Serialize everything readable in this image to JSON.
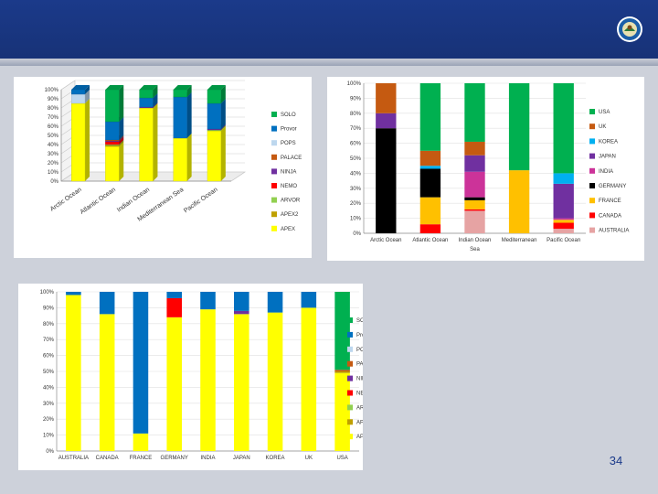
{
  "slide": {
    "page_number": "34"
  },
  "colors": {
    "SOLO": "#00b050",
    "Provor": "#0070c0",
    "POPS": "#bdd7ee",
    "PALACE": "#c55a11",
    "NINJA": "#7030a0",
    "NEMO": "#ff0000",
    "ARVOR": "#92d050",
    "APEX2": "#bfa000",
    "APEX": "#ffff00",
    "USA": "#00b050",
    "UK": "#c55a11",
    "KOREA": "#00b0f0",
    "JAPAN": "#7030a0",
    "INDIA": "#cc3399",
    "GERMANY": "#000000",
    "FRANCE": "#ffc000",
    "CANADA": "#ff0000",
    "AUSTRALIA": "#e6a3a3"
  },
  "chart_data": [
    {
      "id": "float-types-by-ocean",
      "type": "bar",
      "stacked": true,
      "style": "3d",
      "title": "",
      "xlabel": "",
      "ylabel": "",
      "ylim": [
        0,
        100
      ],
      "y_ticks": [
        "0%",
        "10%",
        "20%",
        "30%",
        "40%",
        "50%",
        "60%",
        "70%",
        "80%",
        "90%",
        "100%"
      ],
      "categories": [
        "Arctic Ocean",
        "Atlantic Ocean",
        "Indian Ocean",
        "Mediterranean Sea",
        "Pacific Ocean"
      ],
      "legend_position": "right",
      "legend": [
        "SOLO",
        "Provor",
        "POPS",
        "PALACE",
        "NINJA",
        "NEMO",
        "ARVOR",
        "APEX2",
        "APEX"
      ],
      "series": [
        {
          "name": "APEX",
          "values": [
            85,
            38,
            80,
            47,
            55
          ]
        },
        {
          "name": "APEX2",
          "values": [
            0,
            1,
            0,
            0,
            0
          ]
        },
        {
          "name": "ARVOR",
          "values": [
            0,
            1,
            0,
            0,
            1
          ]
        },
        {
          "name": "NEMO",
          "values": [
            0,
            3,
            0,
            0,
            0
          ]
        },
        {
          "name": "NINJA",
          "values": [
            0,
            1,
            1,
            0,
            1
          ]
        },
        {
          "name": "PALACE",
          "values": [
            0,
            1,
            0,
            0,
            0
          ]
        },
        {
          "name": "POPS",
          "values": [
            10,
            0,
            0,
            0,
            0
          ]
        },
        {
          "name": "Provor",
          "values": [
            5,
            20,
            10,
            45,
            28
          ]
        },
        {
          "name": "SOLO",
          "values": [
            0,
            35,
            9,
            8,
            15
          ]
        }
      ]
    },
    {
      "id": "countries-by-sea",
      "type": "bar",
      "stacked": true,
      "title": "",
      "xlabel": "Sea",
      "ylabel": "",
      "ylim": [
        0,
        100
      ],
      "y_ticks": [
        "0%",
        "10%",
        "20%",
        "30%",
        "40%",
        "50%",
        "60%",
        "70%",
        "80%",
        "90%",
        "100%"
      ],
      "categories": [
        "Arctic Ocean",
        "Atlantic Ocean",
        "Indian Ocean",
        "Mediterranean",
        "Pacific Ocean"
      ],
      "legend_position": "right",
      "legend": [
        "USA",
        "UK",
        "KOREA",
        "JAPAN",
        "INDIA",
        "GERMANY",
        "FRANCE",
        "CANADA",
        "AUSTRALIA"
      ],
      "series": [
        {
          "name": "AUSTRALIA",
          "values": [
            0,
            0,
            15,
            0,
            3
          ]
        },
        {
          "name": "CANADA",
          "values": [
            0,
            6,
            1,
            0,
            4
          ]
        },
        {
          "name": "FRANCE",
          "values": [
            0,
            18,
            6,
            42,
            2
          ]
        },
        {
          "name": "GERMANY",
          "values": [
            70,
            19,
            2,
            0,
            0
          ]
        },
        {
          "name": "INDIA",
          "values": [
            0,
            0,
            17,
            0,
            1
          ]
        },
        {
          "name": "JAPAN",
          "values": [
            10,
            0,
            11,
            0,
            23
          ]
        },
        {
          "name": "KOREA",
          "values": [
            0,
            2,
            0,
            0,
            7
          ]
        },
        {
          "name": "UK",
          "values": [
            20,
            10,
            9,
            0,
            0
          ]
        },
        {
          "name": "USA",
          "values": [
            0,
            45,
            39,
            58,
            60
          ]
        }
      ]
    },
    {
      "id": "float-types-by-country",
      "type": "bar",
      "stacked": true,
      "title": "",
      "xlabel": "",
      "ylabel": "",
      "ylim": [
        0,
        100
      ],
      "y_ticks": [
        "0%",
        "10%",
        "20%",
        "30%",
        "40%",
        "50%",
        "60%",
        "70%",
        "80%",
        "90%",
        "100%"
      ],
      "categories": [
        "AUSTRALIA",
        "CANADA",
        "FRANCE",
        "GERMANY",
        "INDIA",
        "JAPAN",
        "KOREA",
        "UK",
        "USA"
      ],
      "legend_position": "right",
      "legend": [
        "SOLO",
        "Provor",
        "POPS",
        "PALACE",
        "NINJA",
        "NEMO",
        "ARVOR",
        "APEX2",
        "APEX"
      ],
      "series": [
        {
          "name": "APEX",
          "values": [
            98,
            86,
            11,
            84,
            89,
            86,
            87,
            90,
            49
          ]
        },
        {
          "name": "APEX2",
          "values": [
            0,
            0,
            0,
            0,
            0,
            0,
            0,
            0,
            1
          ]
        },
        {
          "name": "ARVOR",
          "values": [
            0,
            0,
            0,
            0,
            0,
            0,
            0,
            0,
            0
          ]
        },
        {
          "name": "NEMO",
          "values": [
            0,
            0,
            0,
            12,
            0,
            0,
            0,
            0,
            0
          ]
        },
        {
          "name": "NINJA",
          "values": [
            0,
            0,
            0,
            0,
            0,
            2,
            0,
            0,
            0
          ]
        },
        {
          "name": "PALACE",
          "values": [
            0,
            0,
            0,
            0,
            0,
            0,
            0,
            0,
            1
          ]
        },
        {
          "name": "POPS",
          "values": [
            0,
            0,
            0,
            0,
            0,
            0,
            0,
            0,
            0
          ]
        },
        {
          "name": "Provor",
          "values": [
            2,
            14,
            89,
            4,
            11,
            12,
            13,
            10,
            0
          ]
        },
        {
          "name": "SOLO",
          "values": [
            0,
            0,
            0,
            0,
            0,
            0,
            0,
            0,
            49
          ]
        }
      ]
    }
  ]
}
